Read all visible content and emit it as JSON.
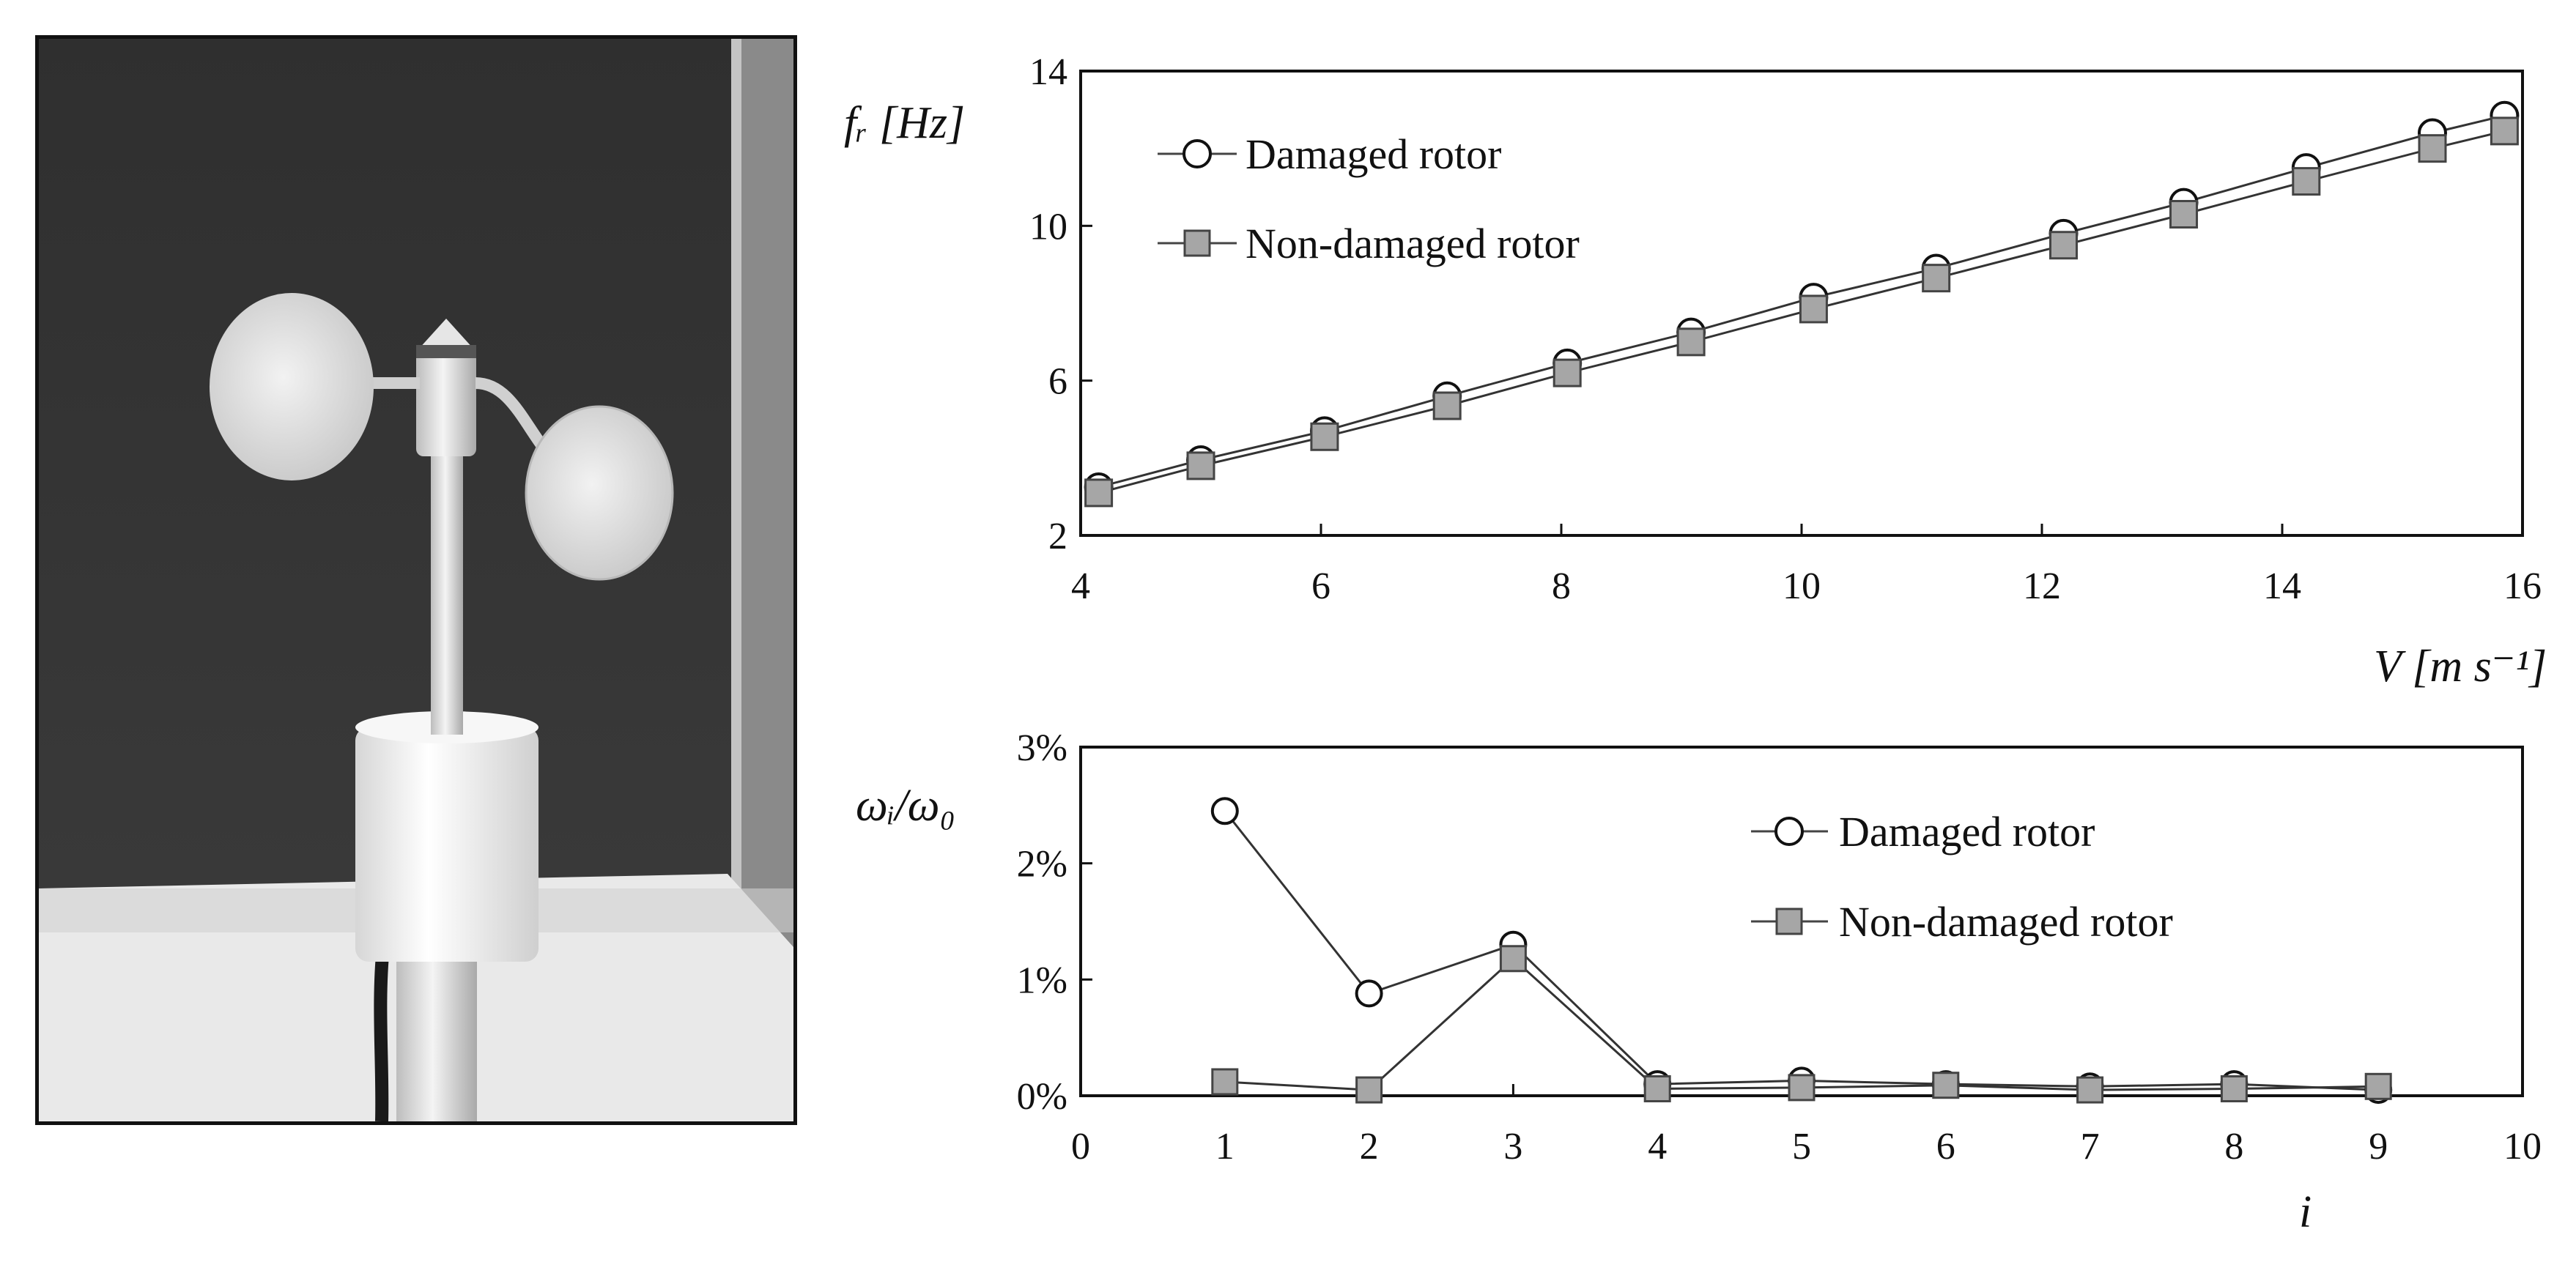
{
  "chart_data": [
    {
      "type": "line",
      "xlabel": "V [m s⁻¹]",
      "ylabel": "fᵣ [Hz]",
      "xlim": [
        4,
        16
      ],
      "ylim": [
        2,
        14
      ],
      "xticks": [
        "4",
        "6",
        "8",
        "10",
        "12",
        "14",
        "16"
      ],
      "yticks": [
        "2",
        "6",
        "10",
        "14"
      ],
      "legend": "top-left",
      "grid": false,
      "series": [
        {
          "name": "Damaged rotor",
          "marker": "open-circle",
          "color": "#ffffff",
          "x": [
            4.15,
            5.0,
            6.03,
            7.05,
            8.05,
            9.08,
            10.1,
            11.12,
            12.18,
            13.18,
            14.2,
            15.25,
            15.85
          ],
          "y": [
            3.25,
            3.95,
            4.7,
            5.6,
            6.45,
            7.25,
            8.15,
            8.9,
            9.8,
            10.6,
            11.5,
            12.4,
            12.85
          ]
        },
        {
          "name": "Non-damaged rotor",
          "marker": "filled-square",
          "color": "#a6a6a6",
          "x": [
            4.15,
            5.0,
            6.03,
            7.05,
            8.05,
            9.08,
            10.1,
            11.12,
            12.18,
            13.18,
            14.2,
            15.25,
            15.85
          ],
          "y": [
            3.1,
            3.8,
            4.55,
            5.35,
            6.2,
            7.0,
            7.85,
            8.65,
            9.5,
            10.3,
            11.15,
            12.0,
            12.45
          ]
        }
      ]
    },
    {
      "type": "line",
      "xlabel": "i",
      "ylabel": "ωᵢ/ω₀",
      "xlim": [
        0,
        10
      ],
      "ylim": [
        0,
        3
      ],
      "xticks": [
        "0",
        "1",
        "2",
        "3",
        "4",
        "5",
        "6",
        "7",
        "8",
        "9",
        "10"
      ],
      "yticks": [
        "0%",
        "1%",
        "2%",
        "3%"
      ],
      "legend": "top-right",
      "grid": false,
      "series": [
        {
          "name": "Damaged rotor",
          "marker": "open-circle",
          "color": "#ffffff",
          "x": [
            1,
            2,
            3,
            4,
            5,
            6,
            7,
            8,
            9
          ],
          "y": [
            2.45,
            0.88,
            1.3,
            0.1,
            0.13,
            0.1,
            0.08,
            0.1,
            0.05
          ]
        },
        {
          "name": "Non-damaged rotor",
          "marker": "filled-square",
          "color": "#a6a6a6",
          "x": [
            1,
            2,
            3,
            4,
            5,
            6,
            7,
            8,
            9
          ],
          "y": [
            0.12,
            0.05,
            1.18,
            0.06,
            0.07,
            0.09,
            0.05,
            0.06,
            0.08
          ]
        }
      ]
    }
  ]
}
